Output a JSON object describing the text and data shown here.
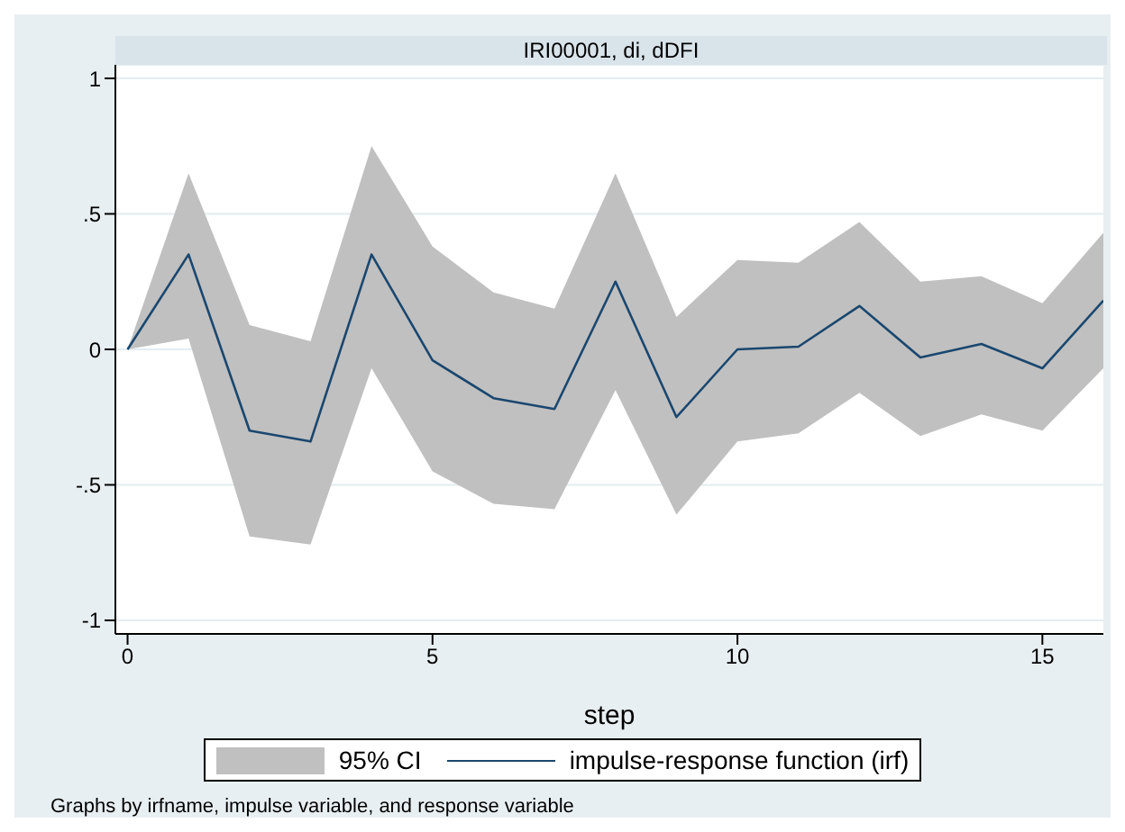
{
  "chart_data": {
    "type": "line",
    "title": "IRI00001, di, dDFI",
    "xlabel": "step",
    "annotations": [
      "95% CI",
      "Graphs by irfname, impulse variable, and response variable"
    ],
    "x": [
      0,
      1,
      2,
      3,
      4,
      5,
      6,
      7,
      8,
      9,
      10,
      11,
      12,
      13,
      14,
      15,
      16
    ],
    "series": [
      {
        "name": "impulse-response function (irf)",
        "color": "#1a476f",
        "values": [
          0,
          0.35,
          -0.3,
          -0.34,
          0.35,
          -0.04,
          -0.18,
          -0.22,
          0.25,
          -0.25,
          0,
          0.01,
          0.16,
          -0.03,
          0.02,
          -0.07,
          0.18
        ],
        "lower": [
          0,
          0.04,
          -0.69,
          -0.72,
          -0.07,
          -0.45,
          -0.57,
          -0.59,
          -0.15,
          -0.61,
          -0.34,
          -0.31,
          -0.16,
          -0.32,
          -0.24,
          -0.3,
          -0.07
        ],
        "upper": [
          0,
          0.65,
          0.09,
          0.03,
          0.75,
          0.38,
          0.21,
          0.15,
          0.65,
          0.12,
          0.33,
          0.32,
          0.47,
          0.25,
          0.27,
          0.17,
          0.43
        ]
      }
    ],
    "xlim": [
      -0.2,
      16
    ],
    "xticks": [
      0,
      5,
      10,
      15
    ],
    "ylim": [
      -1.05,
      1.05
    ],
    "yticks": [
      {
        "value": -1,
        "label": "-1"
      },
      {
        "value": -0.5,
        "label": "-.5"
      },
      0,
      {
        "value": 0.5,
        "label": ".5"
      },
      1
    ],
    "grid": "y",
    "legend": "bottom",
    "marker": "none",
    "line_style": "solid"
  }
}
